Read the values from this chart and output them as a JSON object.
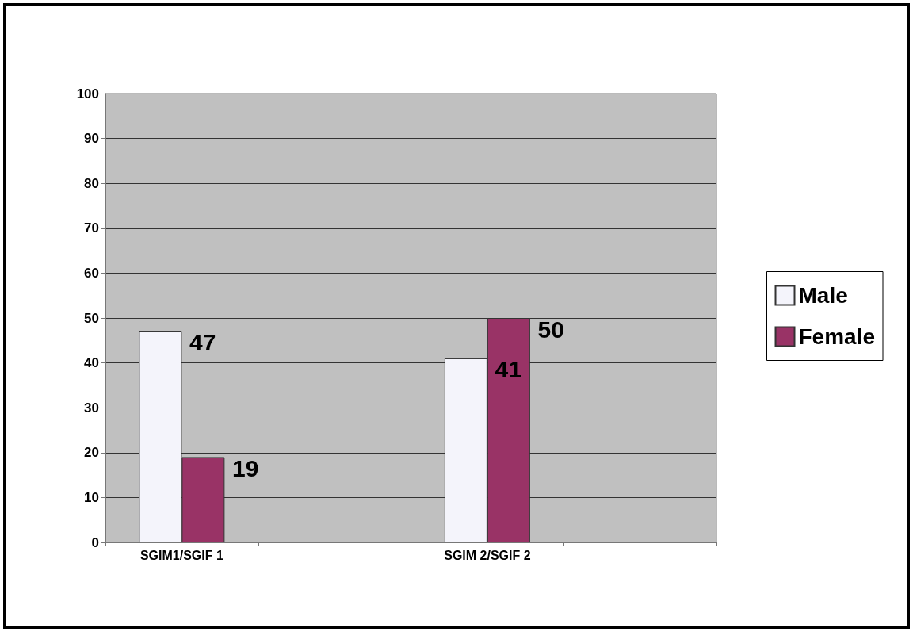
{
  "chart_data": {
    "type": "bar",
    "categories": [
      "SGIM1/SGIF 1",
      null,
      "SGIM 2/SGIF 2",
      null
    ],
    "series": [
      {
        "name": "Male",
        "color": "#f4f4fb",
        "values": [
          47,
          null,
          41,
          null
        ]
      },
      {
        "name": "Female",
        "color": "#993366",
        "values": [
          19,
          null,
          50,
          null
        ]
      }
    ],
    "ylim": [
      0,
      100
    ],
    "yticks": [
      0,
      10,
      20,
      30,
      40,
      50,
      60,
      70,
      80,
      90,
      100
    ],
    "grid": "y",
    "legend": "right",
    "data_labels": true
  }
}
